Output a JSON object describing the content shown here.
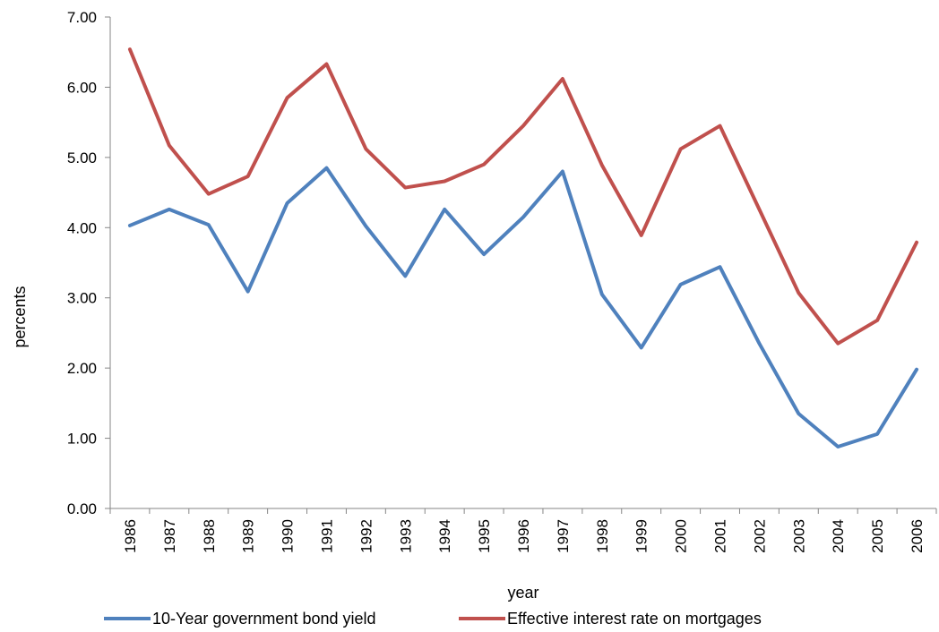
{
  "chart_data": {
    "type": "line",
    "title": "",
    "xlabel": "year",
    "ylabel": "percents",
    "ylim": [
      0,
      7
    ],
    "yticks": [
      "0.00",
      "1.00",
      "2.00",
      "3.00",
      "4.00",
      "5.00",
      "6.00",
      "7.00"
    ],
    "grid": false,
    "legend_position": "bottom",
    "x": [
      "1986",
      "1987",
      "1988",
      "1989",
      "1990",
      "1991",
      "1992",
      "1993",
      "1994",
      "1995",
      "1996",
      "1997",
      "1998",
      "1999",
      "2000",
      "2001",
      "2002",
      "2003",
      "2004",
      "2005",
      "2006"
    ],
    "series": [
      {
        "name": "10-Year government bond yield",
        "color": "#4f81bd",
        "values": [
          4.03,
          4.26,
          4.04,
          3.09,
          4.35,
          4.85,
          4.02,
          3.31,
          4.26,
          3.62,
          4.15,
          4.8,
          3.05,
          2.29,
          3.19,
          3.44,
          2.35,
          1.35,
          0.88,
          1.06,
          1.98
        ]
      },
      {
        "name": "Effective interest rate on mortgages",
        "color": "#c0504d",
        "values": [
          6.54,
          5.17,
          4.48,
          4.73,
          5.85,
          6.33,
          5.12,
          4.57,
          4.66,
          4.9,
          5.45,
          6.12,
          4.89,
          3.89,
          5.12,
          5.45,
          4.26,
          3.07,
          2.35,
          2.68,
          3.79
        ]
      }
    ]
  }
}
